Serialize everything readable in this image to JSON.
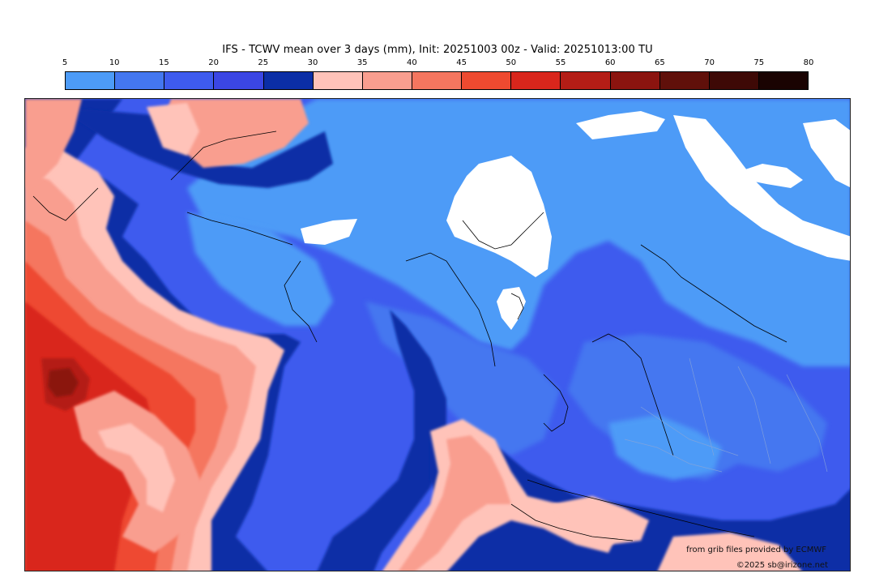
{
  "title": "IFS - TCWV mean over 3 days (mm), Init: 20251003 00z - Valid: 20251013:00 TU",
  "colorbar": {
    "ticks": [
      "5",
      "10",
      "15",
      "20",
      "25",
      "30",
      "35",
      "40",
      "45",
      "50",
      "55",
      "60",
      "65",
      "70",
      "75",
      "80"
    ],
    "colors": [
      "#4d9bf7",
      "#4477f0",
      "#3e5bee",
      "#3b46e4",
      "#0b2ea6",
      "#ffc3b9",
      "#f99e8f",
      "#f5765f",
      "#ee4a30",
      "#d9261c",
      "#b41d16",
      "#8b140f",
      "#60100a",
      "#3e0906",
      "#1a0302"
    ]
  },
  "map": {
    "projection": "polar stereographic",
    "field": "total column water vapour",
    "land_outline_color": "#000000",
    "border_color": "#8aa6d8"
  },
  "credits": {
    "source": "from grib files provided by ECMWF",
    "copyright": "©2025 sb@irizone.net"
  }
}
